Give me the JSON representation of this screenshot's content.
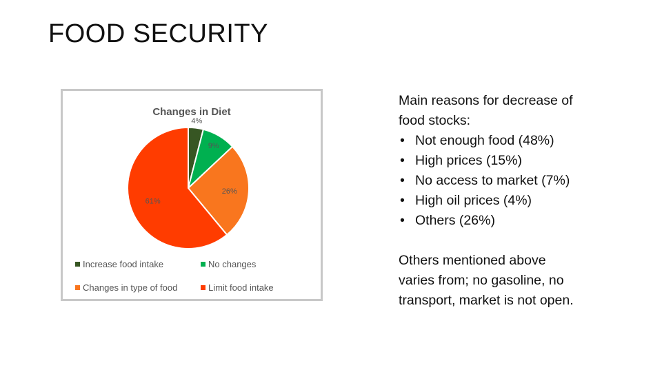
{
  "slide": {
    "title": "FOOD SECURITY"
  },
  "text_panel": {
    "heading": "Main reasons for decrease of food stocks:",
    "reasons": [
      "Not enough food (48%)",
      "High prices (15%)",
      "No access to market (7%)",
      "High oil prices (4%)",
      "Others (26%)"
    ],
    "note": "Others mentioned above varies from; no gasoline, no transport, market is not open."
  },
  "chart_data": {
    "type": "pie",
    "title": "Changes in Diet",
    "slices": [
      {
        "name": "Increase food intake",
        "value": 4,
        "label": "4%",
        "color": "#375623"
      },
      {
        "name": "No changes",
        "value": 9,
        "label": "9%",
        "color": "#00b050"
      },
      {
        "name": "Changes in type of food",
        "value": 26,
        "label": "26%",
        "color": "#f9761e"
      },
      {
        "name": "Limit food intake",
        "value": 61,
        "label": "61%",
        "color": "#ff3c00"
      }
    ],
    "legend_placement": "bottom"
  }
}
